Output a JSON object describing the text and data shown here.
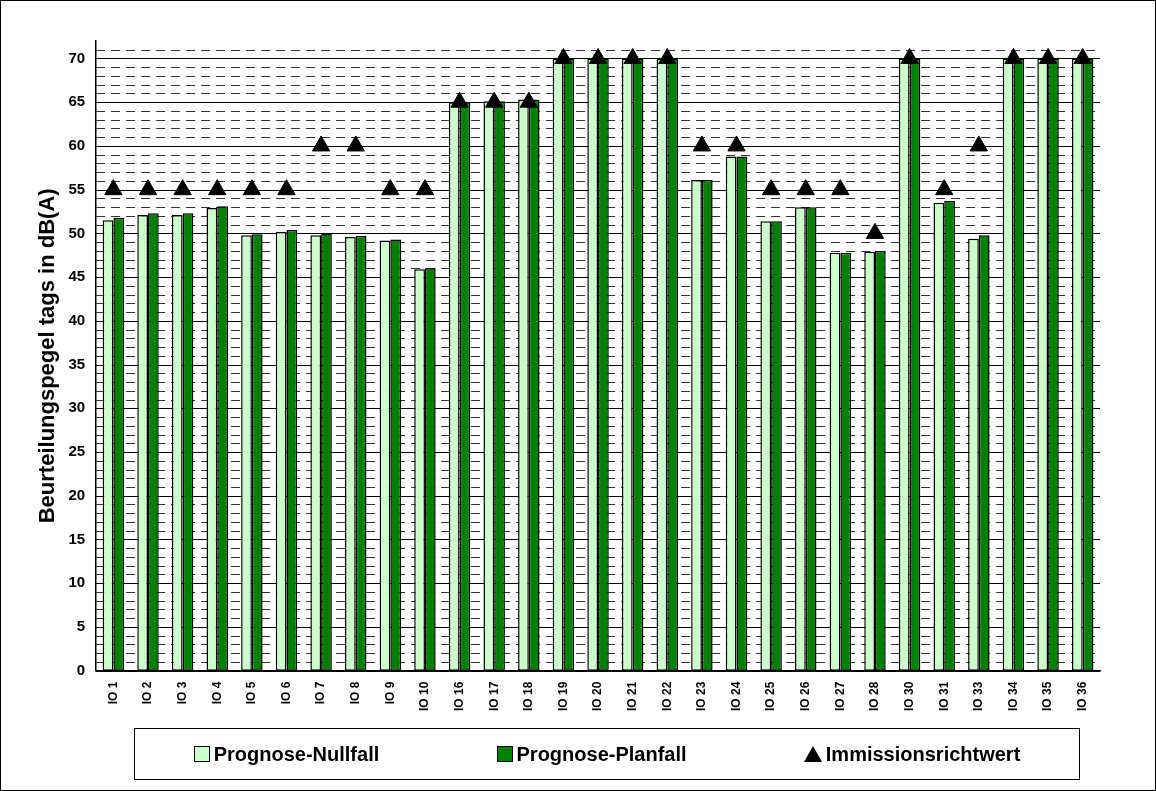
{
  "chart_data": {
    "type": "bar",
    "ylabel": "Beurteilungspegel tags in dB(A)",
    "categories": [
      "IO 1",
      "IO 2",
      "IO 3",
      "IO 4",
      "IO 5",
      "IO 6",
      "IO 7",
      "IO 8",
      "IO 9",
      "IO 10",
      "IO 16",
      "IO 17",
      "IO 18",
      "IO 19",
      "IO 20",
      "IO 21",
      "IO 22",
      "IO 23",
      "IO 24",
      "IO 25",
      "IO 26",
      "IO 27",
      "IO 28",
      "IO 30",
      "IO 31",
      "IO 33",
      "IO 34",
      "IO 35",
      "IO 36"
    ],
    "series": [
      {
        "name": "Prognose-Nullfall",
        "color": "#ccffcc",
        "values": [
          51.5,
          52.1,
          52.1,
          52.9,
          49.8,
          50.2,
          49.8,
          49.6,
          49.2,
          45.9,
          65,
          65.1,
          65.3,
          70,
          70,
          70,
          70,
          56.1,
          58.8,
          51.4,
          53,
          47.8,
          47.9,
          70,
          53.5,
          49.4,
          70,
          70,
          70
        ]
      },
      {
        "name": "Prognose-Planfall",
        "color": "#008000",
        "values": [
          51.8,
          52.3,
          52.3,
          53.1,
          49.9,
          50.4,
          50,
          49.7,
          49.3,
          46,
          65,
          65.1,
          65.3,
          70,
          70,
          70,
          70,
          56.1,
          58.8,
          51.4,
          53,
          47.8,
          48,
          70,
          53.7,
          49.8,
          70,
          70,
          70
        ]
      },
      {
        "name": "Immissionsrichtwert",
        "type": "scatter",
        "color": "#000000",
        "x": [
          "IO 1",
          "IO 2",
          "IO 3",
          "IO 4",
          "IO 5",
          "IO 6",
          "IO 7",
          "IO 8",
          "IO 9",
          "IO 10",
          "IO 16",
          "IO 17",
          "IO 18",
          "IO 19",
          "IO 20",
          "IO 21",
          "IO 22",
          "IO 23",
          "IO 24",
          "IO 25",
          "IO 26",
          "IO 27",
          "IO 28",
          "IO 30",
          "IO 31",
          "IO 33",
          "IO 34",
          "IO 35",
          "IO 36"
        ],
        "values": [
          55,
          55,
          55,
          55,
          55,
          55,
          60,
          60,
          55,
          55,
          65,
          65,
          65,
          70,
          70,
          70,
          70,
          60,
          60,
          55,
          55,
          55,
          50,
          70,
          55,
          60,
          70,
          70,
          70
        ]
      }
    ],
    "ylim": [
      0,
      72
    ],
    "yticks": [
      0,
      {
        "value": 1,
        "label": null
      },
      {
        "value": 2,
        "label": null
      },
      {
        "value": 3,
        "label": null
      },
      {
        "value": 4,
        "label": null
      },
      5,
      {
        "value": 6,
        "label": null
      },
      {
        "value": 7,
        "label": null
      },
      {
        "value": 8,
        "label": null
      },
      {
        "value": 9,
        "label": null
      },
      10,
      {
        "value": 11,
        "label": null
      },
      {
        "value": 12,
        "label": null
      },
      {
        "value": 13,
        "label": null
      },
      {
        "value": 14,
        "label": null
      },
      15,
      {
        "value": 16,
        "label": null
      },
      {
        "value": 17,
        "label": null
      },
      {
        "value": 18,
        "label": null
      },
      {
        "value": 19,
        "label": null
      },
      20,
      {
        "value": 21,
        "label": null
      },
      {
        "value": 22,
        "label": null
      },
      {
        "value": 23,
        "label": null
      },
      {
        "value": 24,
        "label": null
      },
      25,
      {
        "value": 26,
        "label": null
      },
      {
        "value": 27,
        "label": null
      },
      {
        "value": 28,
        "label": null
      },
      {
        "value": 29,
        "label": null
      },
      30,
      {
        "value": 31,
        "label": null
      },
      {
        "value": 32,
        "label": null
      },
      {
        "value": 33,
        "label": null
      },
      {
        "value": 34,
        "label": null
      },
      35,
      {
        "value": 36,
        "label": null
      },
      {
        "value": 37,
        "label": null
      },
      {
        "value": 38,
        "label": null
      },
      {
        "value": 39,
        "label": null
      },
      40,
      {
        "value": 41,
        "label": null
      },
      {
        "value": 42,
        "label": null
      },
      {
        "value": 43,
        "label": null
      },
      {
        "value": 44,
        "label": null
      },
      45,
      {
        "value": 46,
        "label": null
      },
      {
        "value": 47,
        "label": null
      },
      {
        "value": 48,
        "label": null
      },
      {
        "value": 49,
        "label": null
      },
      50,
      {
        "value": 51,
        "label": null
      },
      {
        "value": 52,
        "label": null
      },
      {
        "value": 53,
        "label": null
      },
      {
        "value": 54,
        "label": null
      },
      55,
      {
        "value": 56,
        "label": null
      },
      {
        "value": 57,
        "label": null
      },
      {
        "value": 58,
        "label": null
      },
      {
        "value": 59,
        "label": null
      },
      60,
      {
        "value": 61,
        "label": null
      },
      {
        "value": 62,
        "label": null
      },
      {
        "value": 63,
        "label": null
      },
      {
        "value": 64,
        "label": null
      },
      65,
      {
        "value": 66,
        "label": null
      },
      {
        "value": 67,
        "label": null
      },
      {
        "value": 68,
        "label": null
      },
      {
        "value": 69,
        "label": null
      },
      70,
      {
        "value": 71,
        "label": null
      }
    ],
    "grid": true,
    "legend": "bottom",
    "marker": "triangle"
  }
}
